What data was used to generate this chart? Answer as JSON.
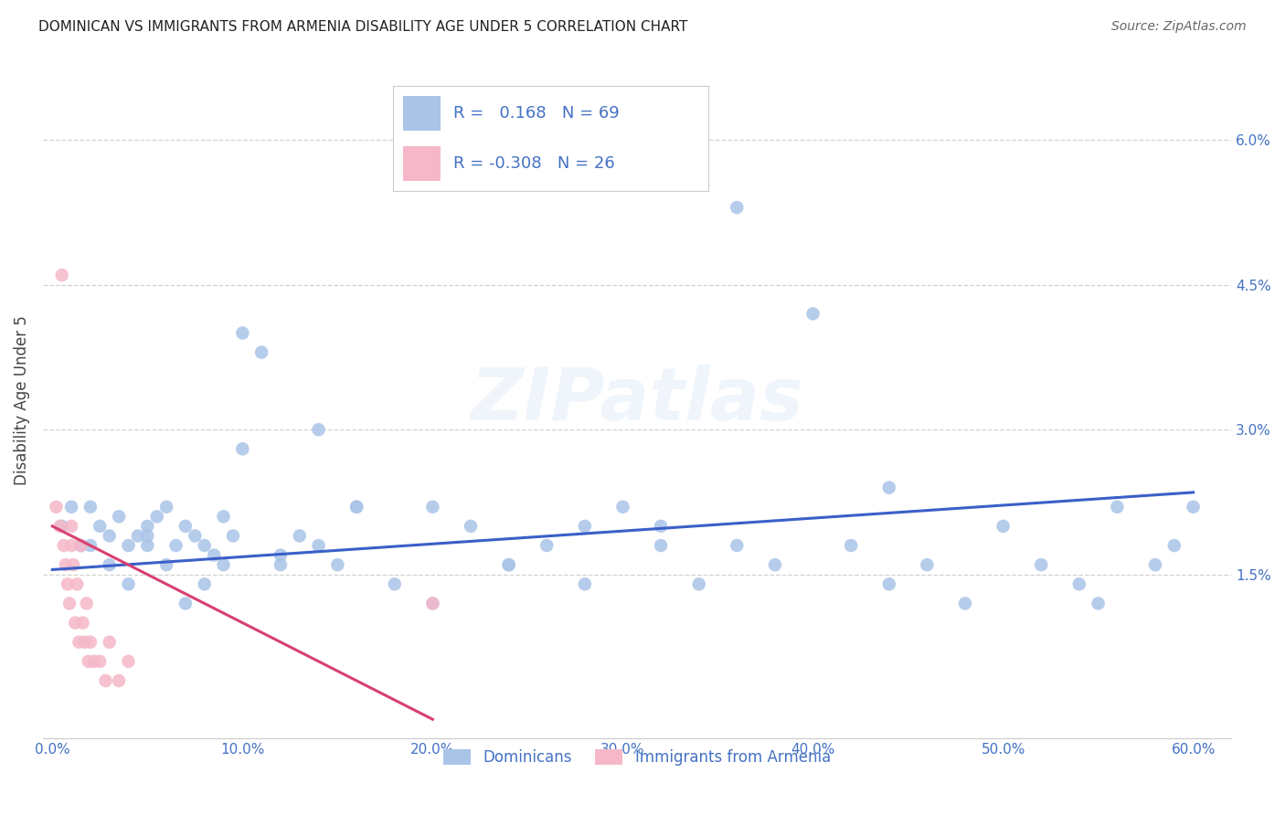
{
  "title": "DOMINICAN VS IMMIGRANTS FROM ARMENIA DISABILITY AGE UNDER 5 CORRELATION CHART",
  "source": "Source: ZipAtlas.com",
  "ylabel": "Disability Age Under 5",
  "xlim": [
    -0.005,
    0.62
  ],
  "ylim": [
    -0.002,
    0.068
  ],
  "xticks": [
    0.0,
    0.1,
    0.2,
    0.3,
    0.4,
    0.5,
    0.6
  ],
  "yticks": [
    0.015,
    0.03,
    0.045,
    0.06
  ],
  "ytick_labels": [
    "1.5%",
    "3.0%",
    "4.5%",
    "6.0%"
  ],
  "xtick_labels": [
    "0.0%",
    "10.0%",
    "20.0%",
    "30.0%",
    "40.0%",
    "50.0%",
    "60.0%"
  ],
  "blue_color": "#aac4e8",
  "pink_color": "#f5b8c8",
  "blue_line_color": "#3a5fc8",
  "pink_line_color": "#d94070",
  "tick_color": "#4472c4",
  "legend_R_blue": " 0.168",
  "legend_N_blue": "69",
  "legend_R_pink": "-0.308",
  "legend_N_pink": "26",
  "legend_label_blue": "Dominicans",
  "legend_label_pink": "Immigrants from Armenia",
  "watermark": "ZIPatlas",
  "blue_x": [
    0.005,
    0.01,
    0.015,
    0.02,
    0.02,
    0.025,
    0.03,
    0.035,
    0.04,
    0.045,
    0.05,
    0.05,
    0.055,
    0.06,
    0.065,
    0.07,
    0.075,
    0.08,
    0.085,
    0.09,
    0.095,
    0.1,
    0.11,
    0.12,
    0.13,
    0.14,
    0.15,
    0.16,
    0.18,
    0.2,
    0.22,
    0.24,
    0.26,
    0.28,
    0.3,
    0.32,
    0.34,
    0.36,
    0.38,
    0.4,
    0.42,
    0.44,
    0.46,
    0.48,
    0.5,
    0.52,
    0.54,
    0.56,
    0.58,
    0.6,
    0.03,
    0.04,
    0.05,
    0.06,
    0.07,
    0.08,
    0.09,
    0.1,
    0.12,
    0.14,
    0.16,
    0.2,
    0.24,
    0.28,
    0.32,
    0.36,
    0.44,
    0.55,
    0.59
  ],
  "blue_y": [
    0.02,
    0.022,
    0.018,
    0.022,
    0.018,
    0.02,
    0.019,
    0.021,
    0.018,
    0.019,
    0.02,
    0.018,
    0.021,
    0.022,
    0.018,
    0.02,
    0.019,
    0.018,
    0.017,
    0.021,
    0.019,
    0.04,
    0.038,
    0.017,
    0.019,
    0.03,
    0.016,
    0.022,
    0.014,
    0.012,
    0.02,
    0.016,
    0.018,
    0.014,
    0.022,
    0.018,
    0.014,
    0.053,
    0.016,
    0.042,
    0.018,
    0.014,
    0.016,
    0.012,
    0.02,
    0.016,
    0.014,
    0.022,
    0.016,
    0.022,
    0.016,
    0.014,
    0.019,
    0.016,
    0.012,
    0.014,
    0.016,
    0.028,
    0.016,
    0.018,
    0.022,
    0.022,
    0.016,
    0.02,
    0.02,
    0.018,
    0.024,
    0.012,
    0.018
  ],
  "pink_x": [
    0.002,
    0.004,
    0.005,
    0.006,
    0.007,
    0.008,
    0.009,
    0.01,
    0.01,
    0.011,
    0.012,
    0.013,
    0.014,
    0.015,
    0.016,
    0.017,
    0.018,
    0.019,
    0.02,
    0.022,
    0.025,
    0.028,
    0.03,
    0.035,
    0.04,
    0.2
  ],
  "pink_y": [
    0.022,
    0.02,
    0.046,
    0.018,
    0.016,
    0.014,
    0.012,
    0.018,
    0.02,
    0.016,
    0.01,
    0.014,
    0.008,
    0.018,
    0.01,
    0.008,
    0.012,
    0.006,
    0.008,
    0.006,
    0.006,
    0.004,
    0.008,
    0.004,
    0.006,
    0.012
  ],
  "blue_trend_x": [
    0.0,
    0.6
  ],
  "blue_trend_y": [
    0.0155,
    0.0235
  ],
  "pink_trend_x": [
    0.0,
    0.2
  ],
  "pink_trend_y": [
    0.02,
    0.0
  ]
}
